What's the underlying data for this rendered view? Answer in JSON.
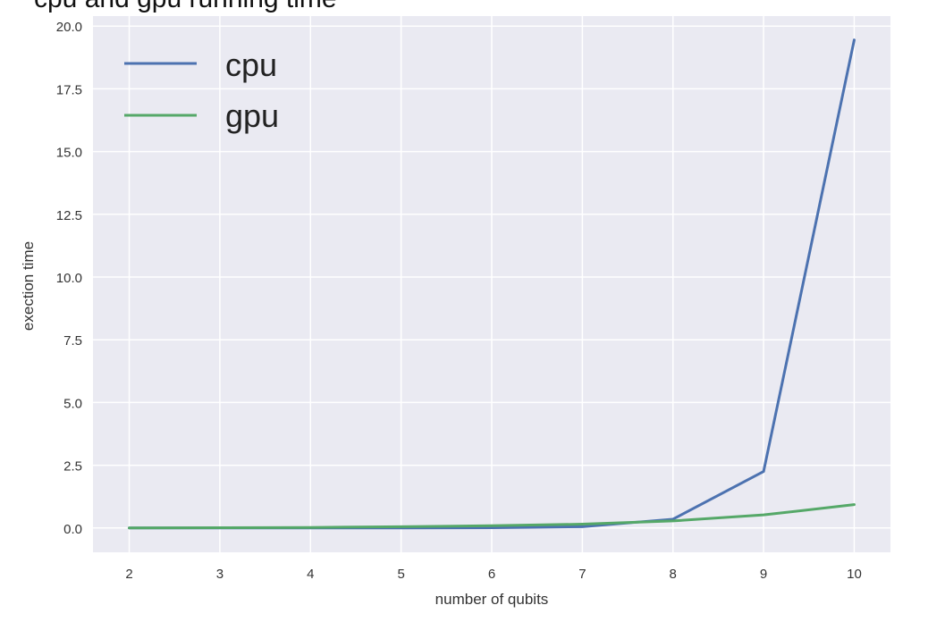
{
  "top_partial_text": "cpu and gpu running time",
  "chart_data": {
    "type": "line",
    "x": [
      2,
      3,
      4,
      5,
      6,
      7,
      8,
      9,
      10
    ],
    "series": [
      {
        "name": "cpu",
        "color": "#4c72b0",
        "values": [
          0.0,
          0.0,
          0.0,
          0.0,
          0.01,
          0.05,
          0.35,
          2.25,
          19.45
        ]
      },
      {
        "name": "gpu",
        "color": "#55a868",
        "values": [
          0.0,
          0.01,
          0.02,
          0.05,
          0.09,
          0.15,
          0.28,
          0.52,
          0.93
        ]
      }
    ],
    "xlabel": "number of qubits",
    "ylabel": "exection time",
    "xlim": [
      1.6,
      10.4
    ],
    "ylim": [
      -0.97,
      20.4
    ],
    "xticks": [
      2,
      3,
      4,
      5,
      6,
      7,
      8,
      9,
      10
    ],
    "xtick_labels": [
      "2",
      "3",
      "4",
      "5",
      "6",
      "7",
      "8",
      "9",
      "10"
    ],
    "yticks": [
      0.0,
      2.5,
      5.0,
      7.5,
      10.0,
      12.5,
      15.0,
      17.5,
      20.0
    ],
    "ytick_labels": [
      "0.0",
      "2.5",
      "5.0",
      "7.5",
      "10.0",
      "12.5",
      "15.0",
      "17.5",
      "20.0"
    ],
    "grid": true,
    "legend_position": "top-left",
    "background_color": "#eaeaf2",
    "grid_color": "#ffffff"
  }
}
